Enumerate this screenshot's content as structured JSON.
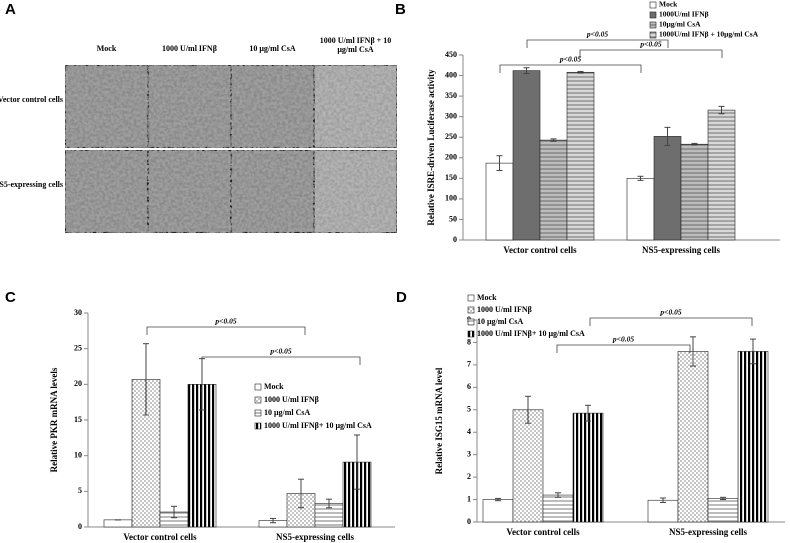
{
  "panel_a": {
    "label": "A",
    "columns": [
      "Mock",
      "1000 U/ml IFNβ",
      "10 μg/ml CsA",
      "1000 U/ml IFNβ + 10 μg/ml CsA"
    ],
    "rows": [
      "Vector control cells",
      "NS5-expressing cells"
    ]
  },
  "chart_data": [
    {
      "type": "bar",
      "panel": "B",
      "ylabel": "Relative ISRE-driven Luciferase activity",
      "categories": [
        "Vector control cells",
        "NS5-expressing cells"
      ],
      "series": [
        {
          "name": "Mock",
          "color": "#ffffff",
          "pattern": "solid",
          "values": [
            187,
            150
          ],
          "errors": [
            18,
            5
          ]
        },
        {
          "name": "1000U/ml IFNβ",
          "color": "#6e6e6e",
          "pattern": "solid",
          "values": [
            412,
            252
          ],
          "errors": [
            7,
            22
          ]
        },
        {
          "name": "10μg/ml CsA",
          "color": "#bcbcbc",
          "pattern": "hlines",
          "values": [
            243,
            233
          ],
          "errors": [
            3,
            2
          ]
        },
        {
          "name": "1000U/ml IFNβ + 10μg/ml CsA",
          "color": "#d8d8d8",
          "pattern": "hlines",
          "values": [
            408,
            316
          ],
          "errors": [
            2,
            9
          ]
        }
      ],
      "ylim": [
        0,
        450
      ],
      "yticks": [
        0,
        50,
        100,
        150,
        200,
        250,
        300,
        350,
        400,
        450
      ],
      "annotations": [
        "p<0.05",
        "p<0.05",
        "p<0.05"
      ]
    },
    {
      "type": "bar",
      "panel": "C",
      "ylabel": "Relative PKR mRNA levels",
      "categories": [
        "Vector control cells",
        "NS5-expressing cells"
      ],
      "series": [
        {
          "name": "Mock",
          "color": "#ffffff",
          "pattern": "solid",
          "values": [
            1,
            0.9
          ],
          "errors": [
            0,
            0.3
          ]
        },
        {
          "name": "1000 U/ml IFNβ",
          "color": "#ffffff",
          "pattern": "dots",
          "values": [
            20.7,
            4.7
          ],
          "errors": [
            5,
            2
          ]
        },
        {
          "name": "10 μg/ml CsA",
          "color": "#ffffff",
          "pattern": "hlines",
          "values": [
            2.1,
            3.3
          ],
          "errors": [
            0.8,
            0.6
          ]
        },
        {
          "name": "1000 U/ml IFNβ+ 10 μg/ml CsA",
          "color": "#000000",
          "pattern": "vlines",
          "values": [
            20,
            9.1
          ],
          "errors": [
            3.6,
            3.8
          ]
        }
      ],
      "ylim": [
        0,
        30
      ],
      "yticks": [
        0,
        5,
        10,
        15,
        20,
        25,
        30
      ],
      "annotations": [
        "p<0.05",
        "p<0.05"
      ]
    },
    {
      "type": "bar",
      "panel": "D",
      "ylabel": "Relative ISG15 mRNA level",
      "categories": [
        "Vector control cells",
        "NS5-expressing cells"
      ],
      "series": [
        {
          "name": "Mock",
          "color": "#ffffff",
          "pattern": "solid",
          "values": [
            1,
            0.97
          ],
          "errors": [
            0.05,
            0.1
          ]
        },
        {
          "name": "1000 U/ml IFNβ",
          "color": "#ffffff",
          "pattern": "dots",
          "values": [
            5,
            7.6
          ],
          "errors": [
            0.6,
            0.65
          ]
        },
        {
          "name": "10 μg/ml CsA",
          "color": "#ffffff",
          "pattern": "hlines",
          "values": [
            1.2,
            1.05
          ],
          "errors": [
            0.1,
            0.05
          ]
        },
        {
          "name": "1000 U/ml IFNβ+ 10 μg/ml CsA",
          "color": "#000000",
          "pattern": "vlines",
          "values": [
            4.85,
            7.6
          ],
          "errors": [
            0.35,
            0.55
          ]
        }
      ],
      "ylim": [
        0,
        9
      ],
      "yticks": [
        0,
        1,
        2,
        3,
        4,
        5,
        6,
        7,
        8,
        9
      ],
      "annotations": [
        "p<0.05",
        "p<0.05"
      ]
    }
  ]
}
